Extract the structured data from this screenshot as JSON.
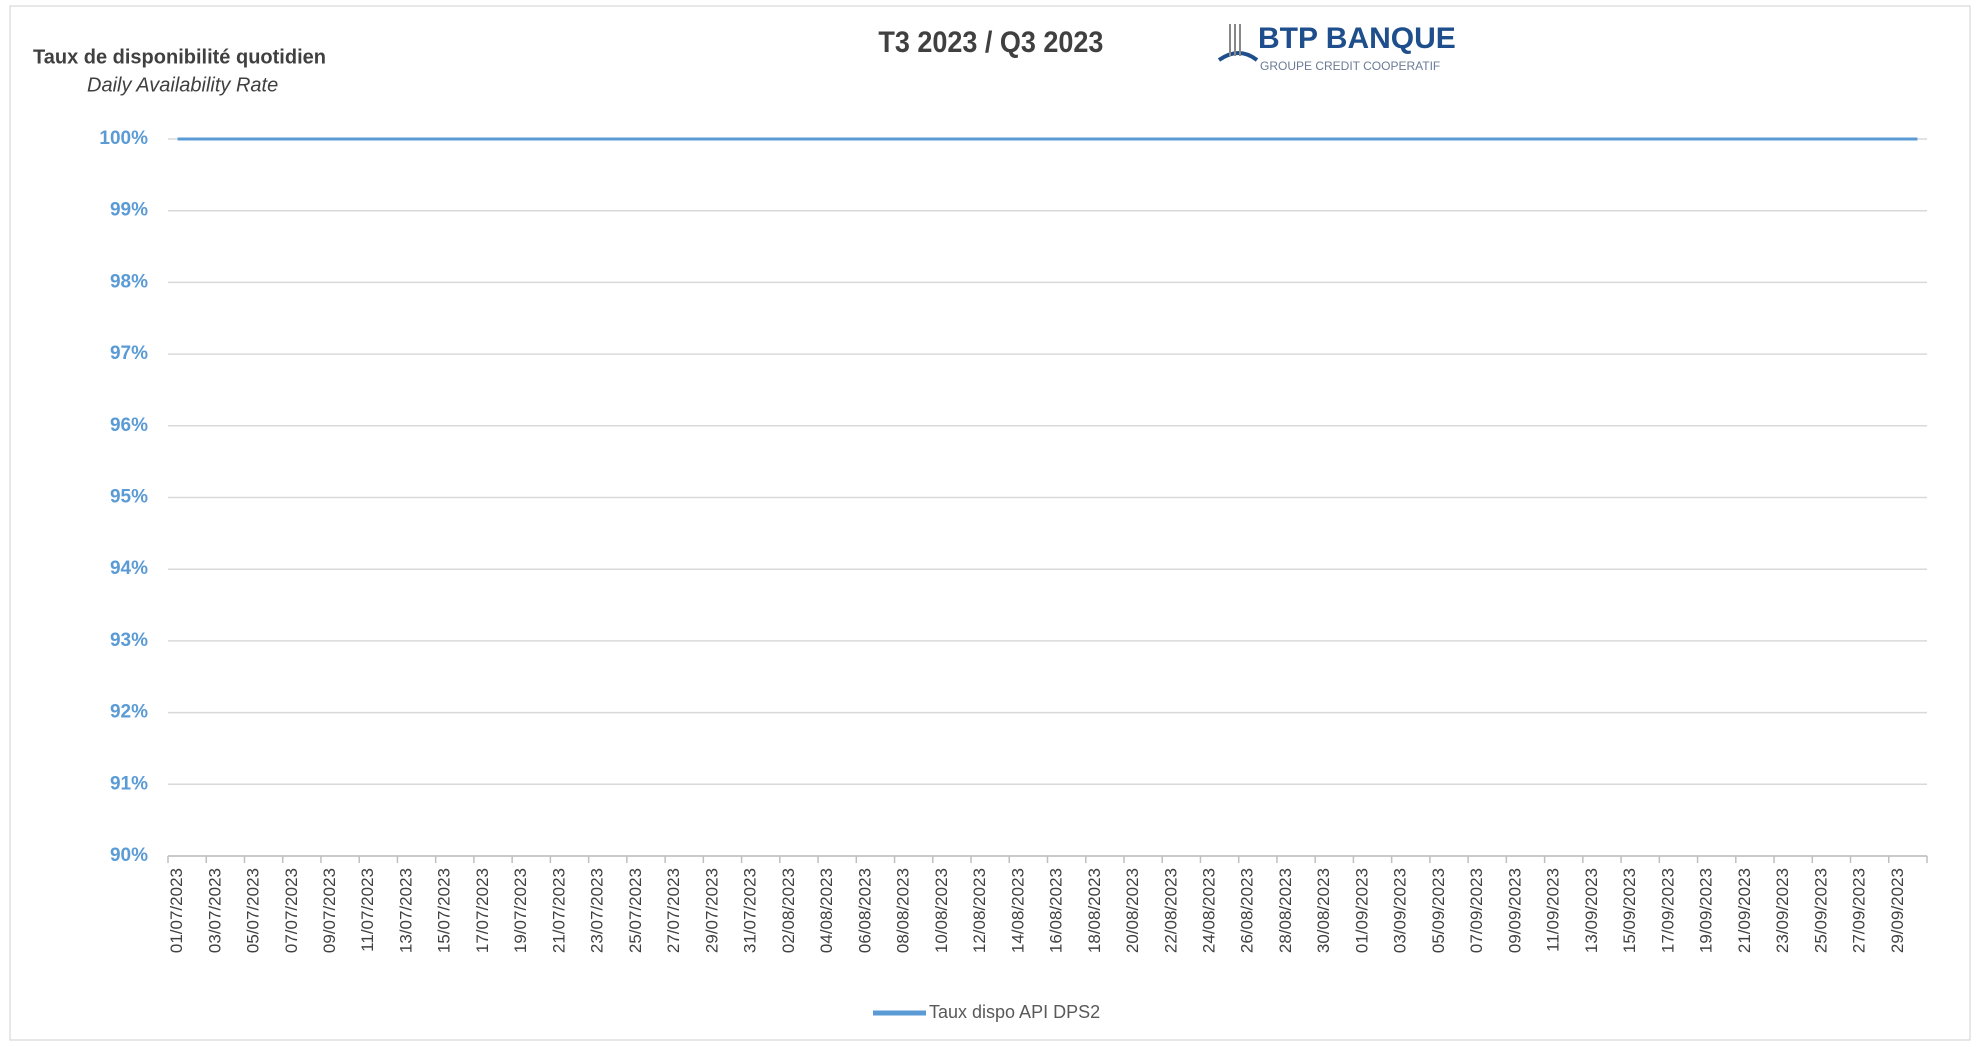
{
  "chart_data": {
    "type": "line",
    "title": "T3 2023 / Q3 2023",
    "y_label": "Taux de disponibilité quotidien",
    "y_sublabel": "Daily Availability Rate",
    "logo": {
      "name": "BTP BANQUE",
      "tagline": "GROUPE CREDIT COOPERATIF"
    },
    "categories": [
      "01/07/2023",
      null,
      "03/07/2023",
      null,
      "05/07/2023",
      null,
      "07/07/2023",
      null,
      "09/07/2023",
      null,
      "11/07/2023",
      null,
      "13/07/2023",
      null,
      "15/07/2023",
      null,
      "17/07/2023",
      null,
      "19/07/2023",
      null,
      "21/07/2023",
      null,
      "23/07/2023",
      null,
      "25/07/2023",
      null,
      "27/07/2023",
      null,
      "29/07/2023",
      null,
      "31/07/2023",
      null,
      "02/08/2023",
      null,
      "04/08/2023",
      null,
      "06/08/2023",
      null,
      "08/08/2023",
      null,
      "10/08/2023",
      null,
      "12/08/2023",
      null,
      "14/08/2023",
      null,
      "16/08/2023",
      null,
      "18/08/2023",
      null,
      "20/08/2023",
      null,
      "22/08/2023",
      null,
      "24/08/2023",
      null,
      "26/08/2023",
      null,
      "28/08/2023",
      null,
      "30/08/2023",
      null,
      "01/09/2023",
      null,
      "03/09/2023",
      null,
      "05/09/2023",
      null,
      "07/09/2023",
      null,
      "09/09/2023",
      null,
      "11/09/2023",
      null,
      "13/09/2023",
      null,
      "15/09/2023",
      null,
      "17/09/2023",
      null,
      "19/09/2023",
      null,
      "21/09/2023",
      null,
      "23/09/2023",
      null,
      "25/09/2023",
      null,
      "27/09/2023",
      null,
      "29/09/2023",
      null
    ],
    "series": [
      {
        "name": "Taux dispo API DPS2",
        "color": "#5b9bd5",
        "values": [
          100,
          100,
          100,
          100,
          100,
          100,
          100,
          100,
          100,
          100,
          100,
          100,
          100,
          100,
          100,
          100,
          100,
          100,
          100,
          100,
          100,
          100,
          100,
          100,
          100,
          100,
          100,
          100,
          100,
          100,
          100,
          100,
          100,
          100,
          100,
          100,
          100,
          100,
          100,
          100,
          100,
          100,
          100,
          100,
          100,
          100,
          100,
          100,
          100,
          100,
          100,
          100,
          100,
          100,
          100,
          100,
          100,
          100,
          100,
          100,
          100,
          100,
          100,
          100,
          100,
          100,
          100,
          100,
          100,
          100,
          100,
          100,
          100,
          100,
          100,
          100,
          100,
          100,
          100,
          100,
          100,
          100,
          100,
          100,
          100,
          100,
          100,
          100,
          100,
          100,
          100,
          100
        ]
      }
    ],
    "ylim": [
      90,
      100
    ],
    "yticks": [
      {
        "value": 90,
        "label": "90%"
      },
      {
        "value": 91,
        "label": "91%"
      },
      {
        "value": 92,
        "label": "92%"
      },
      {
        "value": 93,
        "label": "93%"
      },
      {
        "value": 94,
        "label": "94%"
      },
      {
        "value": 95,
        "label": "95%"
      },
      {
        "value": 96,
        "label": "96%"
      },
      {
        "value": 97,
        "label": "97%"
      },
      {
        "value": 98,
        "label": "98%"
      },
      {
        "value": 99,
        "label": "99%"
      },
      {
        "value": 100,
        "label": "100%"
      }
    ],
    "grid": true,
    "legend": "bottom"
  }
}
